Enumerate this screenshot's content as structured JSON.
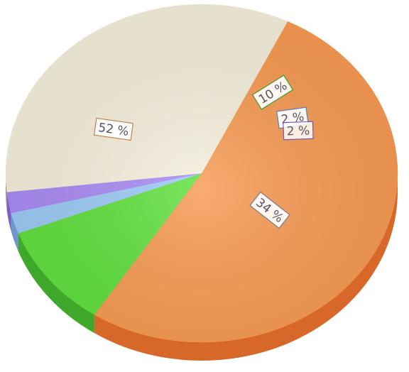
{
  "chart_data": {
    "type": "pie",
    "style": "3d",
    "slices": [
      {
        "label": "52 %",
        "value": 52,
        "color": "#f89a52",
        "edge": "#d8672a",
        "label_box_border": "#c87a4a"
      },
      {
        "label": "10 %",
        "value": 10,
        "color": "#5fe03c",
        "edge": "#3fa82a",
        "label_box_border": "#3f9a2a"
      },
      {
        "label": "2 %",
        "value": 2,
        "color": "#9ccaf7",
        "edge": "#6f98c8",
        "label_box_border": "#5b7fb4"
      },
      {
        "label": "2 %",
        "value": 2,
        "color": "#a98af4",
        "edge": "#7b5fc4",
        "label_box_border": "#6b53b8"
      },
      {
        "label": "34 %",
        "value": 34,
        "color": "#f6f0dc",
        "edge": "#8e8a7c",
        "label_box_border": "#7a7a8a"
      }
    ],
    "legend": "none"
  }
}
